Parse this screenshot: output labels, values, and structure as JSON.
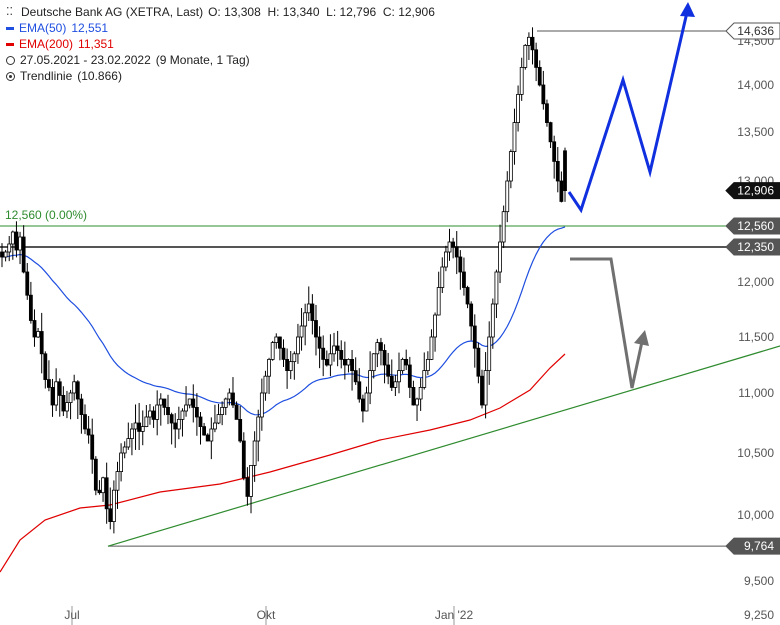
{
  "legend": {
    "title": "Deutsche Bank AG (XETRA, Last)",
    "ohlc": "O: 13,308  H: 13,340  L: 12,796  C: 12,906",
    "ema50_label": "EMA(50)",
    "ema50_value": "12,551",
    "ema200_label": "EMA(200)",
    "ema200_value": "11,351",
    "range": "27.05.2021 - 23.02.2022",
    "period": "(9 Monate, 1 Tag)",
    "trend_label": "Trendlinie",
    "trend_value": "(10.866)"
  },
  "level_label": "12,560 (0.00%)",
  "colors": {
    "candle": "#000000",
    "ema50": "#1f4fe0",
    "ema200": "#e00000",
    "trendline": "#2e8b2e",
    "blue_arrow": "#1030e0",
    "gray_arrow": "#707070",
    "price_tag_dark": "#2a2a2a",
    "level_line": "#555555"
  },
  "chart_data": {
    "type": "candlestick",
    "x_ticks": [
      "Jul",
      "Okt",
      "Jan '22"
    ],
    "y_ticks": [
      "9,250",
      "9,500",
      "10,000",
      "10,500",
      "11,000",
      "11,500",
      "12,000",
      "13,000",
      "13,500",
      "14,000",
      "14,500"
    ],
    "ylim": [
      9.25,
      14.6
    ],
    "price_tags": [
      {
        "label": "14,636",
        "value": 14.636,
        "style": "light"
      },
      {
        "label": "12,906",
        "value": 12.906,
        "style": "dark"
      },
      {
        "label": "12,560",
        "value": 12.56,
        "style": "dark"
      },
      {
        "label": "12,350",
        "value": 12.35,
        "style": "dark"
      },
      {
        "label": "9,764",
        "value": 9.764,
        "style": "dark"
      }
    ],
    "horizontal_levels": [
      {
        "value": 14.636,
        "color": "#555555"
      },
      {
        "value": 12.56,
        "color": "#2e8b2e"
      },
      {
        "value": 12.35,
        "color": "#555555"
      },
      {
        "value": 9.764,
        "color": "#555555"
      }
    ],
    "close_series": [
      12.25,
      12.3,
      12.38,
      12.5,
      12.32,
      12.45,
      12.1,
      11.88,
      11.65,
      11.5,
      11.55,
      11.35,
      11.12,
      11.05,
      10.9,
      11.1,
      10.98,
      10.85,
      10.92,
      11.0,
      11.1,
      10.95,
      10.82,
      10.7,
      10.65,
      10.45,
      10.2,
      10.18,
      10.3,
      10.05,
      9.95,
      10.2,
      10.35,
      10.5,
      10.55,
      10.62,
      10.7,
      10.75,
      10.68,
      10.72,
      10.8,
      10.85,
      10.78,
      10.9,
      10.95,
      10.88,
      10.82,
      10.75,
      10.7,
      10.78,
      10.85,
      10.9,
      10.95,
      10.88,
      10.8,
      10.72,
      10.65,
      10.6,
      10.7,
      10.75,
      10.82,
      10.88,
      10.95,
      11.0,
      10.9,
      10.78,
      10.6,
      10.3,
      10.15,
      10.4,
      10.6,
      10.8,
      11.0,
      11.15,
      11.3,
      11.45,
      11.5,
      11.4,
      11.3,
      11.2,
      11.28,
      11.35,
      11.5,
      11.6,
      11.72,
      11.8,
      11.65,
      11.5,
      11.4,
      11.3,
      11.25,
      11.35,
      11.42,
      11.38,
      11.3,
      11.25,
      11.3,
      11.2,
      11.1,
      10.95,
      10.85,
      11.0,
      11.2,
      11.35,
      11.45,
      11.38,
      11.25,
      11.15,
      11.05,
      11.1,
      11.2,
      11.3,
      11.25,
      11.05,
      10.9,
      10.95,
      11.05,
      11.2,
      11.3,
      11.5,
      11.7,
      11.95,
      12.15,
      12.3,
      12.4,
      12.35,
      12.25,
      12.1,
      11.95,
      11.8,
      11.6,
      11.4,
      11.15,
      10.9,
      11.2,
      11.5,
      11.8,
      12.1,
      12.4,
      12.7,
      13.0,
      13.3,
      13.6,
      13.9,
      14.2,
      14.45,
      14.55,
      14.4,
      14.2,
      14.0,
      13.8,
      13.6,
      13.4,
      13.2,
      13.0,
      12.8,
      12.906
    ],
    "ohlc": {
      "open": 13.308,
      "high": 13.34,
      "low": 12.796,
      "close": 12.906
    },
    "ema50": {
      "last": 12.551
    },
    "ema200": {
      "last": 11.351
    },
    "trendline": {
      "from": 9.764,
      "value": 10.866
    }
  }
}
